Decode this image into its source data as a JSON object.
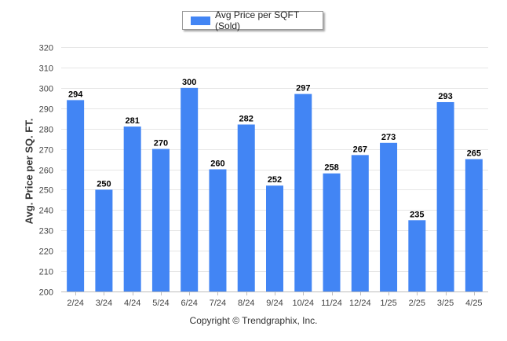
{
  "legend": {
    "label": "Avg Price per SQFT (Sold)"
  },
  "copyright": "Copyright © Trendgraphix, Inc.",
  "colors": {
    "bar": "#4285f4",
    "grid": "#e6e6e6",
    "axis_text": "#444444"
  },
  "chart_data": {
    "type": "bar",
    "title": "",
    "xlabel": "",
    "ylabel": "Avg. Price per SQ. FT.",
    "categories": [
      "2/24",
      "3/24",
      "4/24",
      "5/24",
      "6/24",
      "7/24",
      "8/24",
      "9/24",
      "10/24",
      "11/24",
      "12/24",
      "1/25",
      "2/25",
      "3/25",
      "4/25"
    ],
    "series": [
      {
        "name": "Avg Price per SQFT (Sold)",
        "values": [
          294,
          250,
          281,
          270,
          300,
          260,
          282,
          252,
          297,
          258,
          267,
          273,
          235,
          293,
          265
        ]
      }
    ],
    "ylim": [
      200,
      320
    ],
    "yticks": [
      200,
      210,
      220,
      230,
      240,
      250,
      260,
      270,
      280,
      290,
      300,
      310,
      320
    ],
    "grid": true,
    "legend_position": "top-center",
    "data_labels": true
  }
}
